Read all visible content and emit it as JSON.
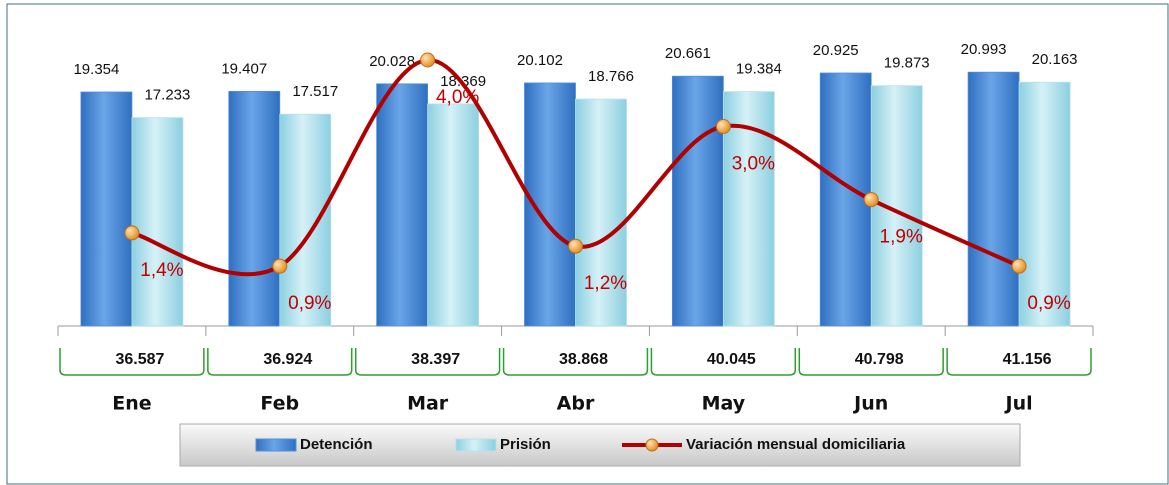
{
  "chart_data": {
    "type": "bar",
    "categories": [
      "Ene",
      "Feb",
      "Mar",
      "Abr",
      "May",
      "Jun",
      "Jul"
    ],
    "series": [
      {
        "name": "Detención",
        "color": "#4f8fd9",
        "values": [
          19354,
          19407,
          20028,
          20102,
          20661,
          20925,
          20993
        ],
        "value_labels": [
          "19.354",
          "19.407",
          "20.028",
          "20.102",
          "20.661",
          "20.925",
          "20.993"
        ]
      },
      {
        "name": "Prisión",
        "color": "#b4e2ee",
        "values": [
          17233,
          17517,
          18369,
          18766,
          19384,
          19873,
          20163
        ],
        "value_labels": [
          "17.233",
          "17.517",
          "18.369",
          "18.766",
          "19.384",
          "19.873",
          "20.163"
        ]
      },
      {
        "name": "Variación mensual domiciliaria",
        "type": "line",
        "axis": "y2",
        "color": "#b00000",
        "values": [
          1.4,
          0.9,
          4.0,
          1.2,
          3.0,
          1.9,
          0.9
        ],
        "value_labels": [
          "1,4%",
          "0,9%",
          "4,0%",
          "1,2%",
          "3,0%",
          "1,9%",
          "0,9%"
        ]
      }
    ],
    "totals": [
      {
        "value": 36587,
        "label": "36.587"
      },
      {
        "value": 36924,
        "label": "36.924"
      },
      {
        "value": 38397,
        "label": "38.397"
      },
      {
        "value": 38868,
        "label": "38.868"
      },
      {
        "value": 40045,
        "label": "40.045"
      },
      {
        "value": 40798,
        "label": "40.798"
      },
      {
        "value": 41156,
        "label": "41.156"
      }
    ],
    "ylim": [
      0,
      22000
    ],
    "y2lim": [
      0,
      4
    ],
    "legend": "bottom"
  }
}
